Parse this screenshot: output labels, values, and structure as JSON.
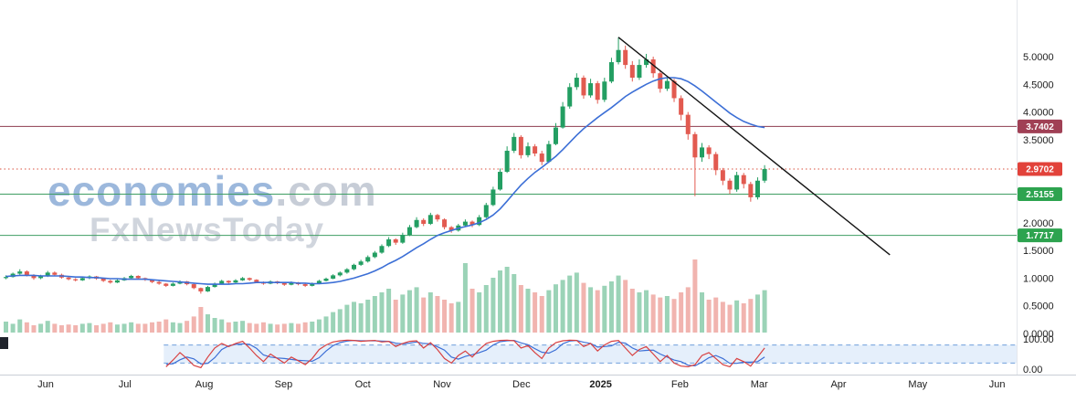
{
  "watermark": {
    "brand": "economies",
    "brand_suffix": ".com",
    "tagline": "FxNewsToday"
  },
  "colors": {
    "up": "#239e62",
    "down": "#e25a50",
    "ma": "#3c6fd6",
    "trend": "#141414",
    "band": "#cfe2f8",
    "band_line": "#6f9fdc",
    "osc_k": "#d84040",
    "osc_d": "#3c6fd6",
    "axis_text": "#1c1c1c",
    "resistance_dark_red": "#8e3b4f",
    "current_price_red": "#e2423a",
    "support_green": "#2da34f"
  },
  "chart_data": {
    "type": "candlestick",
    "x_axis": {
      "labels": [
        "Jun",
        "Jul",
        "Aug",
        "Sep",
        "Oct",
        "Nov",
        "Dec",
        "2025",
        "Feb",
        "Mar",
        "Apr",
        "May",
        "Jun"
      ]
    },
    "y_axis": {
      "range": [
        0,
        5.56
      ],
      "ticks": [
        "5.0000",
        "4.5000",
        "4.0000",
        "3.5000",
        "2.0000",
        "1.5000",
        "1.0000",
        "0.5000",
        "0.0000"
      ],
      "osc_range": [
        0,
        100
      ],
      "osc_ticks": [
        "100.00",
        "0.00"
      ]
    },
    "price_lines": [
      {
        "value": 3.7402,
        "label": "3.7402",
        "color": "#8e3b4f",
        "style": "solid",
        "label_bg": "#a04055"
      },
      {
        "value": 2.9702,
        "label": "2.9702",
        "color": "#d9503e",
        "style": "dotted",
        "label_bg": "#e2423a"
      },
      {
        "value": 2.5155,
        "label": "2.5155",
        "color": "#3f9e63",
        "style": "solid",
        "label_bg": "#2da34f"
      },
      {
        "value": 1.7717,
        "label": "1.7717",
        "color": "#3f9e63",
        "style": "solid",
        "label_bg": "#2da34f"
      }
    ],
    "candles": [
      [
        1.0,
        1.05,
        0.98,
        1.02
      ],
      [
        1.02,
        1.1,
        1.01,
        1.08
      ],
      [
        1.08,
        1.16,
        1.06,
        1.12
      ],
      [
        1.12,
        1.14,
        1.03,
        1.05
      ],
      [
        1.05,
        1.07,
        0.97,
        1.0
      ],
      [
        1.0,
        1.06,
        0.98,
        1.04
      ],
      [
        1.04,
        1.13,
        1.02,
        1.1
      ],
      [
        1.1,
        1.12,
        1.04,
        1.06
      ],
      [
        1.06,
        1.08,
        0.99,
        1.01
      ],
      [
        1.01,
        1.03,
        0.96,
        0.98
      ],
      [
        0.98,
        1.0,
        0.94,
        0.96
      ],
      [
        0.96,
        1.02,
        0.95,
        1.0
      ],
      [
        1.0,
        1.05,
        0.98,
        1.03
      ],
      [
        1.03,
        1.04,
        0.97,
        0.99
      ],
      [
        0.99,
        1.0,
        0.93,
        0.95
      ],
      [
        0.95,
        0.97,
        0.9,
        0.92
      ],
      [
        0.92,
        0.98,
        0.91,
        0.96
      ],
      [
        0.96,
        1.02,
        0.95,
        1.0
      ],
      [
        1.0,
        1.06,
        0.99,
        1.04
      ],
      [
        1.04,
        1.05,
        0.98,
        1.0
      ],
      [
        1.0,
        1.01,
        0.95,
        0.97
      ],
      [
        0.97,
        0.98,
        0.91,
        0.93
      ],
      [
        0.93,
        0.95,
        0.88,
        0.9
      ],
      [
        0.9,
        0.91,
        0.84,
        0.86
      ],
      [
        0.86,
        0.92,
        0.85,
        0.9
      ],
      [
        0.9,
        0.96,
        0.89,
        0.94
      ],
      [
        0.94,
        0.95,
        0.87,
        0.89
      ],
      [
        0.89,
        0.9,
        0.8,
        0.82
      ],
      [
        0.82,
        0.83,
        0.72,
        0.76
      ],
      [
        0.76,
        0.86,
        0.75,
        0.84
      ],
      [
        0.84,
        0.92,
        0.83,
        0.9
      ],
      [
        0.9,
        0.97,
        0.89,
        0.95
      ],
      [
        0.95,
        0.96,
        0.9,
        0.92
      ],
      [
        0.92,
        0.98,
        0.91,
        0.96
      ],
      [
        0.96,
        1.02,
        0.95,
        1.0
      ],
      [
        1.0,
        1.01,
        0.95,
        0.97
      ],
      [
        0.97,
        0.98,
        0.91,
        0.93
      ],
      [
        0.93,
        0.94,
        0.88,
        0.9
      ],
      [
        0.9,
        0.96,
        0.89,
        0.94
      ],
      [
        0.94,
        0.95,
        0.89,
        0.91
      ],
      [
        0.91,
        0.92,
        0.86,
        0.88
      ],
      [
        0.88,
        0.94,
        0.87,
        0.92
      ],
      [
        0.92,
        0.93,
        0.87,
        0.89
      ],
      [
        0.89,
        0.9,
        0.84,
        0.86
      ],
      [
        0.86,
        0.92,
        0.85,
        0.9
      ],
      [
        0.9,
        0.97,
        0.89,
        0.95
      ],
      [
        0.95,
        1.01,
        0.94,
        0.99
      ],
      [
        0.99,
        1.07,
        0.98,
        1.05
      ],
      [
        1.05,
        1.12,
        1.03,
        1.1
      ],
      [
        1.1,
        1.18,
        1.08,
        1.16
      ],
      [
        1.16,
        1.26,
        1.14,
        1.24
      ],
      [
        1.24,
        1.33,
        1.22,
        1.3
      ],
      [
        1.3,
        1.41,
        1.28,
        1.38
      ],
      [
        1.38,
        1.49,
        1.36,
        1.46
      ],
      [
        1.46,
        1.61,
        1.44,
        1.58
      ],
      [
        1.58,
        1.74,
        1.56,
        1.7
      ],
      [
        1.7,
        1.72,
        1.6,
        1.64
      ],
      [
        1.64,
        1.82,
        1.62,
        1.78
      ],
      [
        1.78,
        1.96,
        1.76,
        1.92
      ],
      [
        1.92,
        2.1,
        1.9,
        2.05
      ],
      [
        2.05,
        2.08,
        1.94,
        1.98
      ],
      [
        1.98,
        2.18,
        1.96,
        2.14
      ],
      [
        2.14,
        2.16,
        2.02,
        2.06
      ],
      [
        2.06,
        2.08,
        1.88,
        1.92
      ],
      [
        1.92,
        1.94,
        1.82,
        1.86
      ],
      [
        1.86,
        1.98,
        1.84,
        1.95
      ],
      [
        1.95,
        2.06,
        1.93,
        2.02
      ],
      [
        2.02,
        2.04,
        1.92,
        1.96
      ],
      [
        1.96,
        2.14,
        1.94,
        2.1
      ],
      [
        2.1,
        2.36,
        2.08,
        2.32
      ],
      [
        2.32,
        2.65,
        2.3,
        2.6
      ],
      [
        2.6,
        2.98,
        2.58,
        2.92
      ],
      [
        2.92,
        3.38,
        2.9,
        3.3
      ],
      [
        3.3,
        3.62,
        3.26,
        3.55
      ],
      [
        3.55,
        3.58,
        3.16,
        3.22
      ],
      [
        3.22,
        3.45,
        3.18,
        3.38
      ],
      [
        3.38,
        3.42,
        3.2,
        3.25
      ],
      [
        3.25,
        3.3,
        3.04,
        3.1
      ],
      [
        3.1,
        3.48,
        3.08,
        3.42
      ],
      [
        3.42,
        3.8,
        3.4,
        3.72
      ],
      [
        3.72,
        4.18,
        3.7,
        4.1
      ],
      [
        4.1,
        4.52,
        4.06,
        4.45
      ],
      [
        4.45,
        4.7,
        4.4,
        4.62
      ],
      [
        4.62,
        4.66,
        4.24,
        4.3
      ],
      [
        4.3,
        4.6,
        4.26,
        4.52
      ],
      [
        4.52,
        4.56,
        4.15,
        4.22
      ],
      [
        4.22,
        4.62,
        4.18,
        4.55
      ],
      [
        4.55,
        4.98,
        4.52,
        4.9
      ],
      [
        4.9,
        5.35,
        4.86,
        5.12
      ],
      [
        5.12,
        5.2,
        4.78,
        4.85
      ],
      [
        4.85,
        4.92,
        4.55,
        4.62
      ],
      [
        4.62,
        4.95,
        4.58,
        4.85
      ],
      [
        4.85,
        5.05,
        4.8,
        4.95
      ],
      [
        4.95,
        5.0,
        4.62,
        4.7
      ],
      [
        4.7,
        4.76,
        4.35,
        4.42
      ],
      [
        4.42,
        4.64,
        4.38,
        4.56
      ],
      [
        4.56,
        4.6,
        4.18,
        4.25
      ],
      [
        4.25,
        4.3,
        3.85,
        3.95
      ],
      [
        3.95,
        4.0,
        3.5,
        3.6
      ],
      [
        3.6,
        3.64,
        2.48,
        3.18
      ],
      [
        3.18,
        3.44,
        3.1,
        3.36
      ],
      [
        3.36,
        3.4,
        3.15,
        3.24
      ],
      [
        3.24,
        3.28,
        2.86,
        2.95
      ],
      [
        2.95,
        2.99,
        2.68,
        2.76
      ],
      [
        2.76,
        2.8,
        2.52,
        2.6
      ],
      [
        2.6,
        2.92,
        2.56,
        2.86
      ],
      [
        2.86,
        2.9,
        2.62,
        2.7
      ],
      [
        2.7,
        2.74,
        2.38,
        2.46
      ],
      [
        2.46,
        2.82,
        2.42,
        2.76
      ],
      [
        2.76,
        3.04,
        2.72,
        2.97
      ]
    ],
    "ma": [
      1.03,
      1.04,
      1.05,
      1.05,
      1.05,
      1.04,
      1.04,
      1.04,
      1.04,
      1.03,
      1.02,
      1.02,
      1.01,
      1.01,
      1.0,
      0.99,
      0.99,
      0.98,
      0.98,
      0.98,
      0.98,
      0.97,
      0.96,
      0.95,
      0.94,
      0.93,
      0.92,
      0.91,
      0.9,
      0.89,
      0.89,
      0.89,
      0.89,
      0.9,
      0.9,
      0.91,
      0.92,
      0.92,
      0.92,
      0.92,
      0.92,
      0.92,
      0.91,
      0.91,
      0.9,
      0.9,
      0.91,
      0.92,
      0.94,
      0.97,
      1.0,
      1.04,
      1.08,
      1.13,
      1.19,
      1.26,
      1.32,
      1.39,
      1.47,
      1.55,
      1.62,
      1.7,
      1.77,
      1.82,
      1.86,
      1.9,
      1.93,
      1.96,
      2.0,
      2.06,
      2.14,
      2.25,
      2.39,
      2.54,
      2.68,
      2.8,
      2.91,
      3.0,
      3.1,
      3.2,
      3.32,
      3.45,
      3.58,
      3.7,
      3.8,
      3.9,
      3.99,
      4.08,
      4.18,
      4.28,
      4.36,
      4.43,
      4.5,
      4.56,
      4.6,
      4.62,
      4.62,
      4.6,
      4.55,
      4.47,
      4.38,
      4.28,
      4.18,
      4.08,
      3.98,
      3.9,
      3.83,
      3.78,
      3.74,
      3.72
    ],
    "volume": [
      0.15,
      0.12,
      0.18,
      0.14,
      0.1,
      0.12,
      0.16,
      0.12,
      0.1,
      0.11,
      0.1,
      0.12,
      0.13,
      0.1,
      0.12,
      0.14,
      0.11,
      0.12,
      0.14,
      0.12,
      0.12,
      0.14,
      0.15,
      0.18,
      0.14,
      0.13,
      0.16,
      0.22,
      0.35,
      0.25,
      0.2,
      0.18,
      0.14,
      0.15,
      0.16,
      0.13,
      0.12,
      0.14,
      0.12,
      0.11,
      0.12,
      0.13,
      0.12,
      0.14,
      0.15,
      0.18,
      0.22,
      0.28,
      0.32,
      0.38,
      0.42,
      0.4,
      0.45,
      0.5,
      0.55,
      0.6,
      0.45,
      0.52,
      0.58,
      0.62,
      0.48,
      0.55,
      0.5,
      0.45,
      0.4,
      0.42,
      0.95,
      0.6,
      0.55,
      0.65,
      0.75,
      0.85,
      0.9,
      0.8,
      0.65,
      0.6,
      0.55,
      0.5,
      0.58,
      0.66,
      0.72,
      0.78,
      0.82,
      0.68,
      0.62,
      0.58,
      0.64,
      0.7,
      0.78,
      0.72,
      0.6,
      0.55,
      0.58,
      0.52,
      0.48,
      0.5,
      0.46,
      0.55,
      0.62,
      1.0,
      0.55,
      0.45,
      0.48,
      0.42,
      0.38,
      0.44,
      0.4,
      0.46,
      0.52,
      0.58
    ],
    "oscillator": {
      "start_index": 23,
      "upper": 80,
      "lower": 20,
      "k": [
        8,
        30,
        55,
        35,
        12,
        5,
        40,
        70,
        85,
        75,
        85,
        92,
        70,
        45,
        25,
        50,
        35,
        20,
        40,
        28,
        15,
        35,
        65,
        80,
        90,
        94,
        96,
        95,
        92,
        94,
        95,
        90,
        92,
        75,
        85,
        92,
        94,
        70,
        88,
        65,
        35,
        20,
        45,
        60,
        40,
        65,
        85,
        92,
        95,
        96,
        94,
        70,
        78,
        55,
        35,
        70,
        88,
        94,
        96,
        95,
        75,
        85,
        60,
        80,
        92,
        95,
        70,
        45,
        65,
        75,
        50,
        25,
        45,
        20,
        10,
        8,
        15,
        45,
        55,
        35,
        15,
        8,
        35,
        25,
        10,
        40,
        70
      ],
      "d": [
        16,
        18,
        31,
        40,
        34,
        17,
        19,
        38,
        65,
        77,
        82,
        84,
        82,
        69,
        47,
        40,
        37,
        35,
        32,
        29,
        28,
        26,
        38,
        60,
        78,
        88,
        93,
        95,
        94,
        94,
        94,
        93,
        92,
        86,
        84,
        86,
        90,
        85,
        84,
        74,
        63,
        40,
        33,
        42,
        48,
        55,
        63,
        80,
        91,
        94,
        95,
        87,
        81,
        68,
        56,
        53,
        64,
        84,
        93,
        95,
        89,
        85,
        73,
        75,
        77,
        89,
        86,
        70,
        60,
        62,
        63,
        50,
        40,
        30,
        25,
        13,
        11,
        23,
        38,
        45,
        35,
        19,
        19,
        23,
        23,
        25,
        40
      ]
    },
    "trendline": {
      "from_index": 88,
      "from_price": 5.35,
      "to_index": 127,
      "to_price": 1.42
    }
  }
}
